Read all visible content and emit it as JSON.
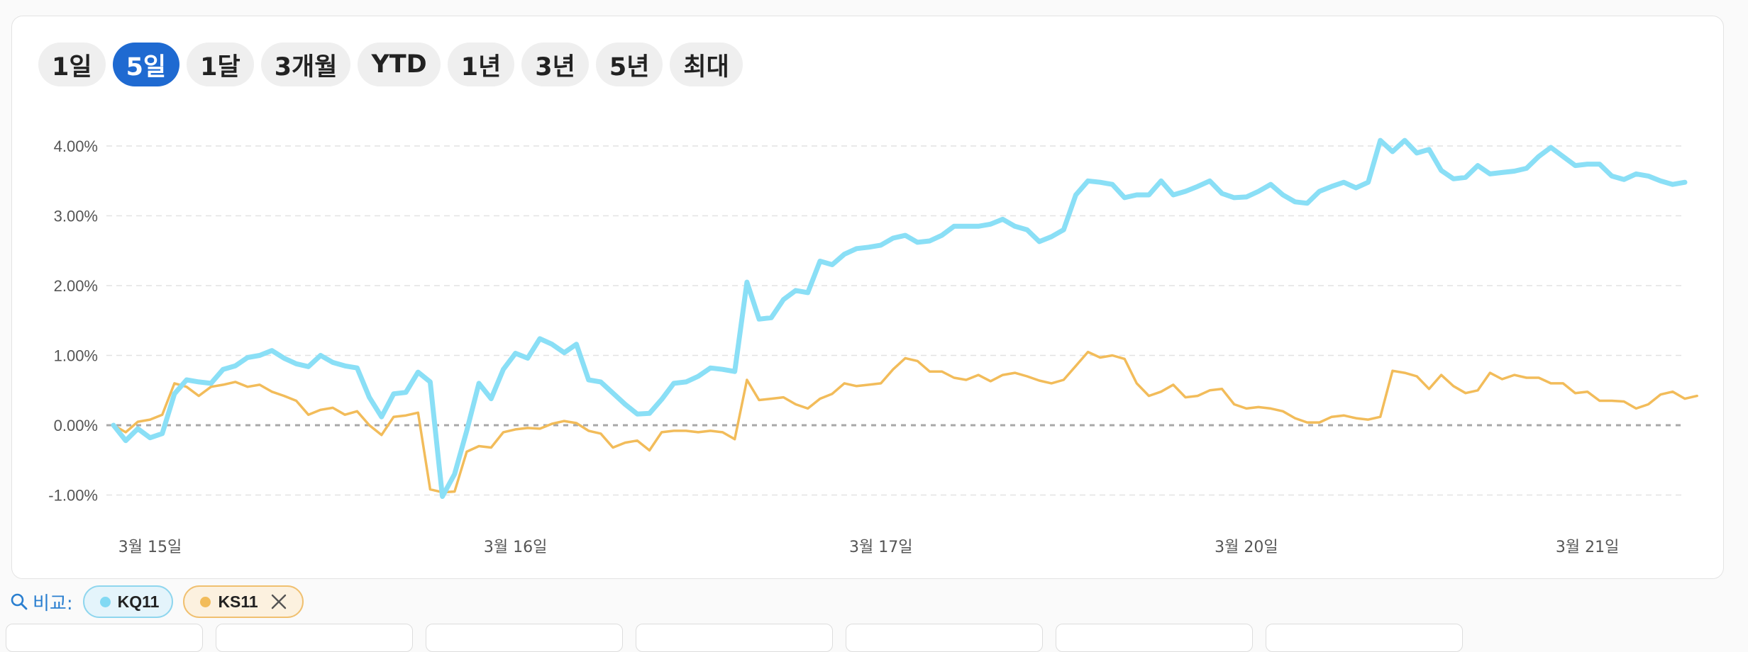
{
  "range_tabs": {
    "items": [
      "1일",
      "5일",
      "1달",
      "3개월",
      "YTD",
      "1년",
      "3년",
      "5년",
      "최대"
    ],
    "active": "5일"
  },
  "compare": {
    "label": "비교:",
    "chips": [
      {
        "label": "KQ11",
        "color": "#82d9f3",
        "removable": false
      },
      {
        "label": "KS11",
        "color": "#f2bc5a",
        "removable": true
      }
    ]
  },
  "chart_data": {
    "type": "line",
    "title": "",
    "xlabel": "",
    "ylabel": "",
    "ylim": [
      -1.2,
      4.6
    ],
    "y_ticks": [
      -1,
      0,
      1,
      2,
      3,
      4
    ],
    "y_tick_labels": [
      "-1.00%",
      "0.00%",
      "1.00%",
      "2.00%",
      "3.00%",
      "4.00%"
    ],
    "x_tick_labels": [
      "3월 15일",
      "3월 16일",
      "3월 17일",
      "3월 20일",
      "3월 21일"
    ],
    "x_tick_positions": [
      3,
      33,
      63,
      93,
      121
    ],
    "grid": true,
    "zero_line": true,
    "legend": "none",
    "series": [
      {
        "color": "#8adff6",
        "values": [
          0.0,
          -0.22,
          -0.05,
          -0.18,
          -0.12,
          0.45,
          0.65,
          0.62,
          0.6,
          0.8,
          0.85,
          0.97,
          1.0,
          1.07,
          0.96,
          0.88,
          0.84,
          1.0,
          0.9,
          0.85,
          0.82,
          0.4,
          0.12,
          0.45,
          0.47,
          0.76,
          0.62,
          -1.02,
          -0.7,
          -0.08,
          0.6,
          0.38,
          0.8,
          1.03,
          0.96,
          1.24,
          1.16,
          1.04,
          1.16,
          0.65,
          0.62,
          0.46,
          0.3,
          0.16,
          0.17,
          0.37,
          0.6,
          0.62,
          0.7,
          0.82,
          0.8,
          0.77,
          2.05,
          1.52,
          1.54,
          1.8,
          1.93,
          1.9,
          2.35,
          2.3,
          2.45,
          2.53,
          2.55,
          2.58,
          2.68,
          2.72,
          2.62,
          2.64,
          2.72,
          2.85,
          2.85,
          2.85,
          2.88,
          2.95,
          2.85,
          2.8,
          2.63,
          2.7,
          2.8,
          3.3,
          3.5,
          3.48,
          3.45,
          3.26,
          3.3,
          3.3,
          3.5,
          3.3,
          3.35,
          3.42,
          3.5,
          3.32,
          3.26,
          3.27,
          3.35,
          3.45,
          3.3,
          3.2,
          3.18,
          3.35,
          3.42,
          3.48,
          3.4,
          3.48,
          4.08,
          3.92,
          4.08,
          3.9,
          3.95,
          3.65,
          3.53,
          3.55,
          3.72,
          3.6,
          3.62,
          3.64,
          3.68,
          3.85,
          3.98,
          3.85,
          3.72,
          3.74,
          3.74,
          3.57,
          3.52,
          3.6,
          3.57,
          3.5,
          3.45,
          3.48
        ]
      },
      {
        "color": "#f2bc5a",
        "values": [
          0.0,
          -0.1,
          0.05,
          0.08,
          0.15,
          0.6,
          0.55,
          0.42,
          0.55,
          0.58,
          0.62,
          0.55,
          0.58,
          0.48,
          0.42,
          0.35,
          0.15,
          0.22,
          0.25,
          0.15,
          0.2,
          0.0,
          -0.14,
          0.12,
          0.14,
          0.18,
          -0.92,
          -0.96,
          -0.95,
          -0.38,
          -0.3,
          -0.32,
          -0.1,
          -0.06,
          -0.04,
          -0.05,
          0.02,
          0.06,
          0.03,
          -0.08,
          -0.12,
          -0.32,
          -0.25,
          -0.22,
          -0.36,
          -0.1,
          -0.08,
          -0.08,
          -0.1,
          -0.08,
          -0.1,
          -0.2,
          0.65,
          0.36,
          0.38,
          0.4,
          0.3,
          0.24,
          0.38,
          0.45,
          0.6,
          0.56,
          0.58,
          0.6,
          0.8,
          0.96,
          0.92,
          0.77,
          0.77,
          0.68,
          0.65,
          0.72,
          0.63,
          0.72,
          0.75,
          0.7,
          0.64,
          0.6,
          0.65,
          0.85,
          1.05,
          0.97,
          1.0,
          0.95,
          0.6,
          0.42,
          0.48,
          0.58,
          0.4,
          0.42,
          0.5,
          0.52,
          0.3,
          0.24,
          0.26,
          0.24,
          0.2,
          0.1,
          0.04,
          0.04,
          0.12,
          0.14,
          0.1,
          0.08,
          0.12,
          0.78,
          0.75,
          0.7,
          0.52,
          0.72,
          0.56,
          0.46,
          0.5,
          0.75,
          0.66,
          0.72,
          0.68,
          0.68,
          0.6,
          0.6,
          0.46,
          0.48,
          0.35,
          0.35,
          0.34,
          0.24,
          0.3,
          0.44,
          0.48,
          0.38,
          0.42
        ]
      }
    ]
  }
}
